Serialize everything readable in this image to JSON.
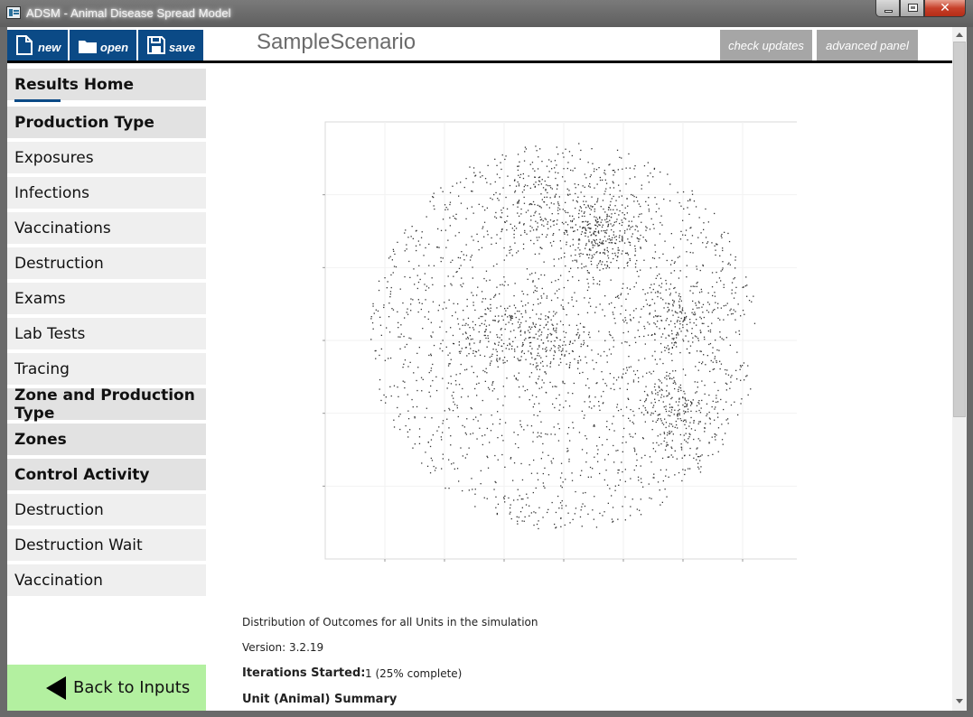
{
  "window": {
    "title": "ADSM - Animal Disease Spread Model",
    "controls": {
      "minimize": "minimize",
      "maximize": "maximize",
      "close": "✕"
    }
  },
  "toolbar": {
    "new_label": "new",
    "open_label": "open",
    "save_label": "save",
    "scenario_title": "SampleScenario",
    "check_updates_label": "check updates",
    "advanced_panel_label": "advanced panel"
  },
  "sidebar": {
    "items": [
      {
        "label": "Results Home",
        "type": "header",
        "active": true
      },
      {
        "label": "Production Type",
        "type": "header"
      },
      {
        "label": "Exposures",
        "type": "item"
      },
      {
        "label": "Infections",
        "type": "item"
      },
      {
        "label": "Vaccinations",
        "type": "item"
      },
      {
        "label": "Destruction",
        "type": "item"
      },
      {
        "label": "Exams",
        "type": "item"
      },
      {
        "label": "Lab Tests",
        "type": "item"
      },
      {
        "label": "Tracing",
        "type": "item"
      },
      {
        "label": "Zone and Production Type",
        "type": "header"
      },
      {
        "label": "Zones",
        "type": "header"
      },
      {
        "label": "Control Activity",
        "type": "header"
      },
      {
        "label": "Destruction",
        "type": "item"
      },
      {
        "label": "Destruction Wait",
        "type": "item"
      },
      {
        "label": "Vaccination",
        "type": "item"
      }
    ],
    "back_label": "Back to Inputs"
  },
  "main": {
    "plot_caption": "Distribution of Outcomes for all Units in the simulation",
    "version_text": "Version: 3.2.19",
    "iterations_label": "Iterations Started:",
    "iterations_value": "1 (25% complete)",
    "summary_heading": "Unit (Animal) Summary"
  },
  "colors": {
    "toolbar_blue": "#0b4a86",
    "back_button_green": "#b3f0a0",
    "gray_button": "#a6a6a6"
  },
  "chart_data": {
    "type": "scatter",
    "title": "",
    "xlabel": "",
    "ylabel": "",
    "grid": true,
    "legend": "none",
    "distribution": "circular",
    "point_count": 3000,
    "clusters": [
      {
        "x": 0.58,
        "y": 0.25,
        "weight": 0.11
      },
      {
        "x": 0.74,
        "y": 0.45,
        "weight": 0.06
      },
      {
        "x": 0.72,
        "y": 0.66,
        "weight": 0.07
      },
      {
        "x": 0.36,
        "y": 0.48,
        "weight": 0.05
      },
      {
        "x": 0.47,
        "y": 0.52,
        "weight": 0.05
      },
      {
        "x": 0.45,
        "y": 0.18,
        "weight": 0.05
      }
    ]
  }
}
